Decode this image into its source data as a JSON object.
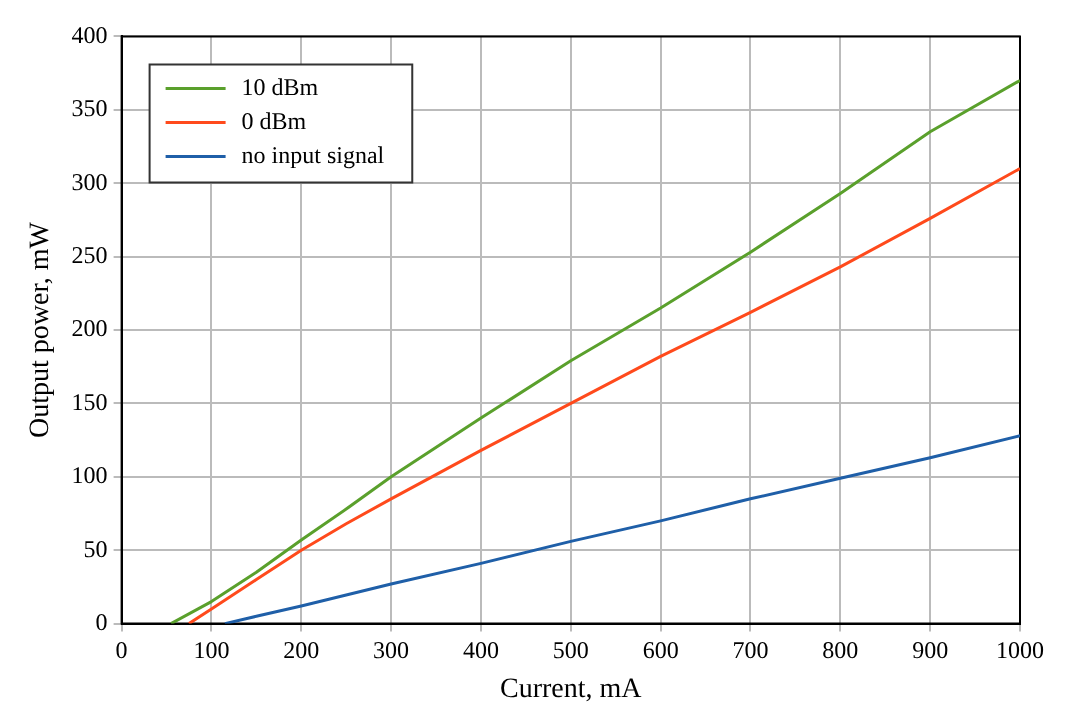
{
  "chart_data": {
    "type": "line",
    "xlabel": "Current, mA",
    "ylabel": "Output power, mW",
    "xlim": [
      0,
      1000
    ],
    "xticks": [
      0,
      100,
      200,
      300,
      400,
      500,
      600,
      700,
      800,
      900,
      1000
    ],
    "ylim": [
      0,
      400
    ],
    "yticks": [
      0,
      50,
      100,
      150,
      200,
      250,
      300,
      350,
      400
    ],
    "grid": true,
    "legend": "top left",
    "marker": "none",
    "line_style": "solid",
    "series": [
      {
        "name": "10 dBm",
        "color": "#5aa02c",
        "x": [
          55,
          100,
          150,
          200,
          250,
          300,
          400,
          500,
          600,
          700,
          800,
          900,
          1000
        ],
        "values": [
          0,
          15,
          35,
          57,
          78,
          100,
          140,
          179,
          215,
          253,
          293,
          335,
          370
        ]
      },
      {
        "name": "0 dBm",
        "color": "#ff4a1c",
        "x": [
          75,
          100,
          150,
          200,
          250,
          300,
          400,
          500,
          600,
          700,
          800,
          900,
          1000
        ],
        "values": [
          0,
          10,
          30,
          50,
          68,
          85,
          118,
          150,
          182,
          212,
          243,
          276,
          310
        ]
      },
      {
        "name": "no input signal",
        "color": "#1f5fa8",
        "x": [
          115,
          150,
          200,
          300,
          400,
          500,
          600,
          700,
          800,
          900,
          1000
        ],
        "values": [
          0,
          5,
          12,
          27,
          41,
          56,
          70,
          85,
          99,
          113,
          128
        ]
      }
    ]
  }
}
